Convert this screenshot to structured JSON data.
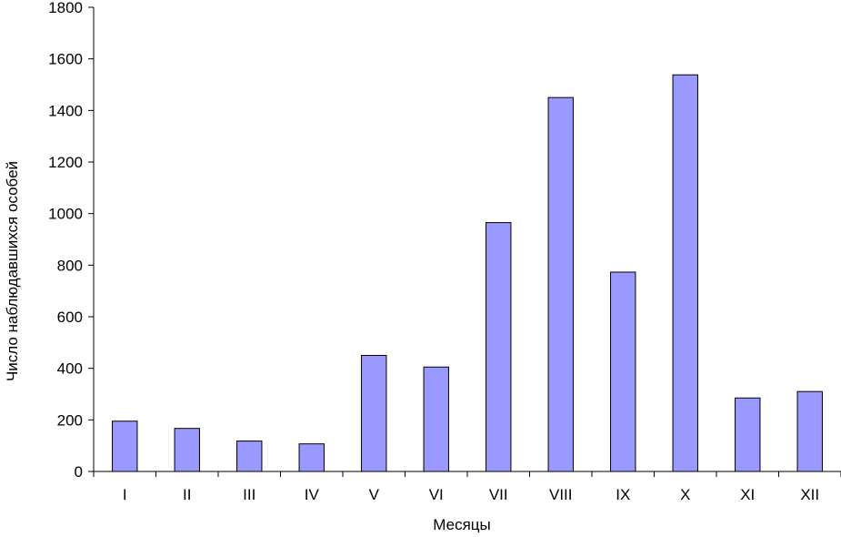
{
  "chart_data": {
    "type": "bar",
    "title": "",
    "xlabel": "Месяцы",
    "ylabel": "Число наблюдавшихся особей",
    "categories": [
      "I",
      "II",
      "III",
      "IV",
      "V",
      "VI",
      "VII",
      "VIII",
      "IX",
      "X",
      "XI",
      "XII"
    ],
    "values": [
      195,
      167,
      118,
      107,
      450,
      405,
      965,
      1450,
      773,
      1538,
      285,
      310
    ],
    "ylim": [
      0,
      1800
    ],
    "yticks": [
      0,
      200,
      400,
      600,
      800,
      1000,
      1200,
      1400,
      1600,
      1800
    ],
    "grid": false,
    "legend": "none",
    "bar_color": "#9999ff",
    "bar_stroke": "#000000"
  }
}
